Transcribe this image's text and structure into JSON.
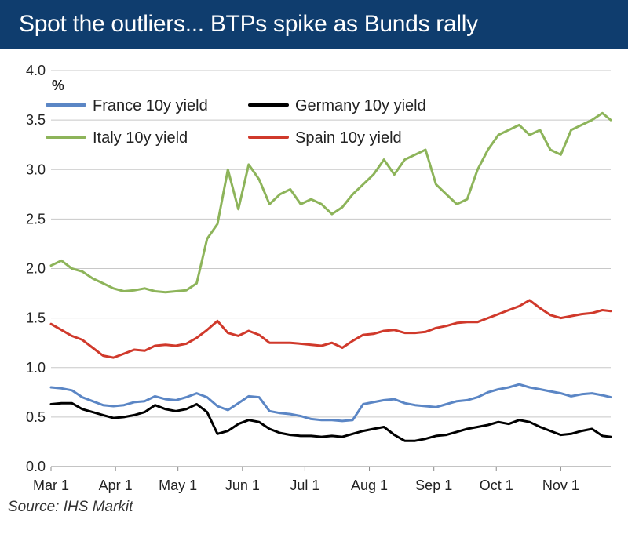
{
  "header": {
    "title": "Spot the outliers... BTPs spike as Bunds rally"
  },
  "footer": {
    "source": "Source: IHS Markit"
  },
  "colors": {
    "header_bg": "#0f3d6e",
    "france": "#5b86c5",
    "germany": "#000000",
    "italy": "#8db45a",
    "spain": "#d0392b"
  },
  "chart_data": {
    "type": "line",
    "title": "Spot the outliers... BTPs spike as Bunds rally",
    "ylabel": "%",
    "xlabel": "",
    "ylim": [
      0,
      4.0
    ],
    "yticks": [
      0.0,
      0.5,
      1.0,
      1.5,
      2.0,
      2.5,
      3.0,
      3.5,
      4.0
    ],
    "ytick_labels": [
      "0.0",
      "0.5",
      "1.0",
      "1.5",
      "2.0",
      "2.5",
      "3.0",
      "3.5",
      "4.0"
    ],
    "xlim_days": [
      0,
      269
    ],
    "xticks": [
      0,
      31,
      61,
      92,
      122,
      153,
      184,
      214,
      245
    ],
    "xtick_labels": [
      "Mar 1",
      "Apr 1",
      "May 1",
      "Jun 1",
      "Jul 1",
      "Aug 1",
      "Sep 1",
      "Oct 1",
      "Nov 1"
    ],
    "legend": "top-left",
    "series": [
      {
        "name": "France 10y yield",
        "color": "#5b86c5",
        "x": [
          0,
          5,
          10,
          15,
          20,
          25,
          30,
          35,
          40,
          45,
          50,
          55,
          60,
          65,
          70,
          75,
          80,
          85,
          90,
          95,
          100,
          105,
          110,
          115,
          120,
          125,
          130,
          135,
          140,
          145,
          150,
          155,
          160,
          165,
          170,
          175,
          180,
          185,
          190,
          195,
          200,
          205,
          210,
          215,
          220,
          225,
          230,
          235,
          240,
          245,
          250,
          255,
          260,
          265,
          269
        ],
        "values": [
          0.8,
          0.79,
          0.77,
          0.7,
          0.66,
          0.62,
          0.61,
          0.62,
          0.65,
          0.66,
          0.71,
          0.68,
          0.67,
          0.7,
          0.74,
          0.7,
          0.61,
          0.57,
          0.64,
          0.71,
          0.7,
          0.56,
          0.54,
          0.53,
          0.51,
          0.48,
          0.47,
          0.47,
          0.46,
          0.47,
          0.63,
          0.65,
          0.67,
          0.68,
          0.64,
          0.62,
          0.61,
          0.6,
          0.63,
          0.66,
          0.67,
          0.7,
          0.75,
          0.78,
          0.8,
          0.83,
          0.8,
          0.78,
          0.76,
          0.74,
          0.71,
          0.73,
          0.74,
          0.72,
          0.7
        ]
      },
      {
        "name": "Germany 10y yield",
        "color": "#000000",
        "x": [
          0,
          5,
          10,
          15,
          20,
          25,
          30,
          35,
          40,
          45,
          50,
          55,
          60,
          65,
          70,
          75,
          80,
          85,
          90,
          95,
          100,
          105,
          110,
          115,
          120,
          125,
          130,
          135,
          140,
          145,
          150,
          155,
          160,
          165,
          170,
          175,
          180,
          185,
          190,
          195,
          200,
          205,
          210,
          215,
          220,
          225,
          230,
          235,
          240,
          245,
          250,
          255,
          260,
          265,
          269
        ],
        "values": [
          0.63,
          0.64,
          0.64,
          0.58,
          0.55,
          0.52,
          0.49,
          0.5,
          0.52,
          0.55,
          0.62,
          0.58,
          0.56,
          0.58,
          0.63,
          0.55,
          0.33,
          0.36,
          0.43,
          0.47,
          0.45,
          0.38,
          0.34,
          0.32,
          0.31,
          0.31,
          0.3,
          0.31,
          0.3,
          0.33,
          0.36,
          0.38,
          0.4,
          0.32,
          0.26,
          0.26,
          0.28,
          0.31,
          0.32,
          0.35,
          0.38,
          0.4,
          0.42,
          0.45,
          0.43,
          0.47,
          0.45,
          0.4,
          0.36,
          0.32,
          0.33,
          0.36,
          0.38,
          0.31,
          0.3
        ]
      },
      {
        "name": "Italy 10y yield",
        "color": "#8db45a",
        "x": [
          0,
          5,
          10,
          15,
          20,
          25,
          30,
          35,
          40,
          45,
          50,
          55,
          60,
          65,
          70,
          75,
          80,
          85,
          90,
          95,
          100,
          105,
          110,
          115,
          120,
          125,
          130,
          135,
          140,
          145,
          150,
          155,
          160,
          165,
          170,
          175,
          180,
          185,
          190,
          195,
          200,
          205,
          210,
          215,
          220,
          225,
          230,
          235,
          240,
          245,
          250,
          255,
          260,
          265,
          269
        ],
        "values": [
          2.03,
          2.08,
          2.0,
          1.97,
          1.9,
          1.85,
          1.8,
          1.77,
          1.78,
          1.8,
          1.77,
          1.76,
          1.77,
          1.78,
          1.85,
          2.3,
          2.45,
          3.0,
          2.6,
          3.05,
          2.9,
          2.65,
          2.75,
          2.8,
          2.65,
          2.7,
          2.65,
          2.55,
          2.62,
          2.75,
          2.85,
          2.95,
          3.1,
          2.95,
          3.1,
          3.15,
          3.2,
          2.85,
          2.75,
          2.65,
          2.7,
          3.0,
          3.2,
          3.35,
          3.4,
          3.45,
          3.35,
          3.4,
          3.2,
          3.15,
          3.4,
          3.45,
          3.5,
          3.57,
          3.5
        ]
      },
      {
        "name": "Spain 10y yield",
        "color": "#d0392b",
        "x": [
          0,
          5,
          10,
          15,
          20,
          25,
          30,
          35,
          40,
          45,
          50,
          55,
          60,
          65,
          70,
          75,
          80,
          85,
          90,
          95,
          100,
          105,
          110,
          115,
          120,
          125,
          130,
          135,
          140,
          145,
          150,
          155,
          160,
          165,
          170,
          175,
          180,
          185,
          190,
          195,
          200,
          205,
          210,
          215,
          220,
          225,
          230,
          235,
          240,
          245,
          250,
          255,
          260,
          265,
          269
        ],
        "values": [
          1.44,
          1.38,
          1.32,
          1.28,
          1.2,
          1.12,
          1.1,
          1.14,
          1.18,
          1.17,
          1.22,
          1.23,
          1.22,
          1.24,
          1.3,
          1.38,
          1.47,
          1.35,
          1.32,
          1.37,
          1.33,
          1.25,
          1.25,
          1.25,
          1.24,
          1.23,
          1.22,
          1.25,
          1.2,
          1.27,
          1.33,
          1.34,
          1.37,
          1.38,
          1.35,
          1.35,
          1.36,
          1.4,
          1.42,
          1.45,
          1.46,
          1.46,
          1.5,
          1.54,
          1.58,
          1.62,
          1.68,
          1.6,
          1.53,
          1.5,
          1.52,
          1.54,
          1.55,
          1.58,
          1.57
        ]
      }
    ]
  }
}
